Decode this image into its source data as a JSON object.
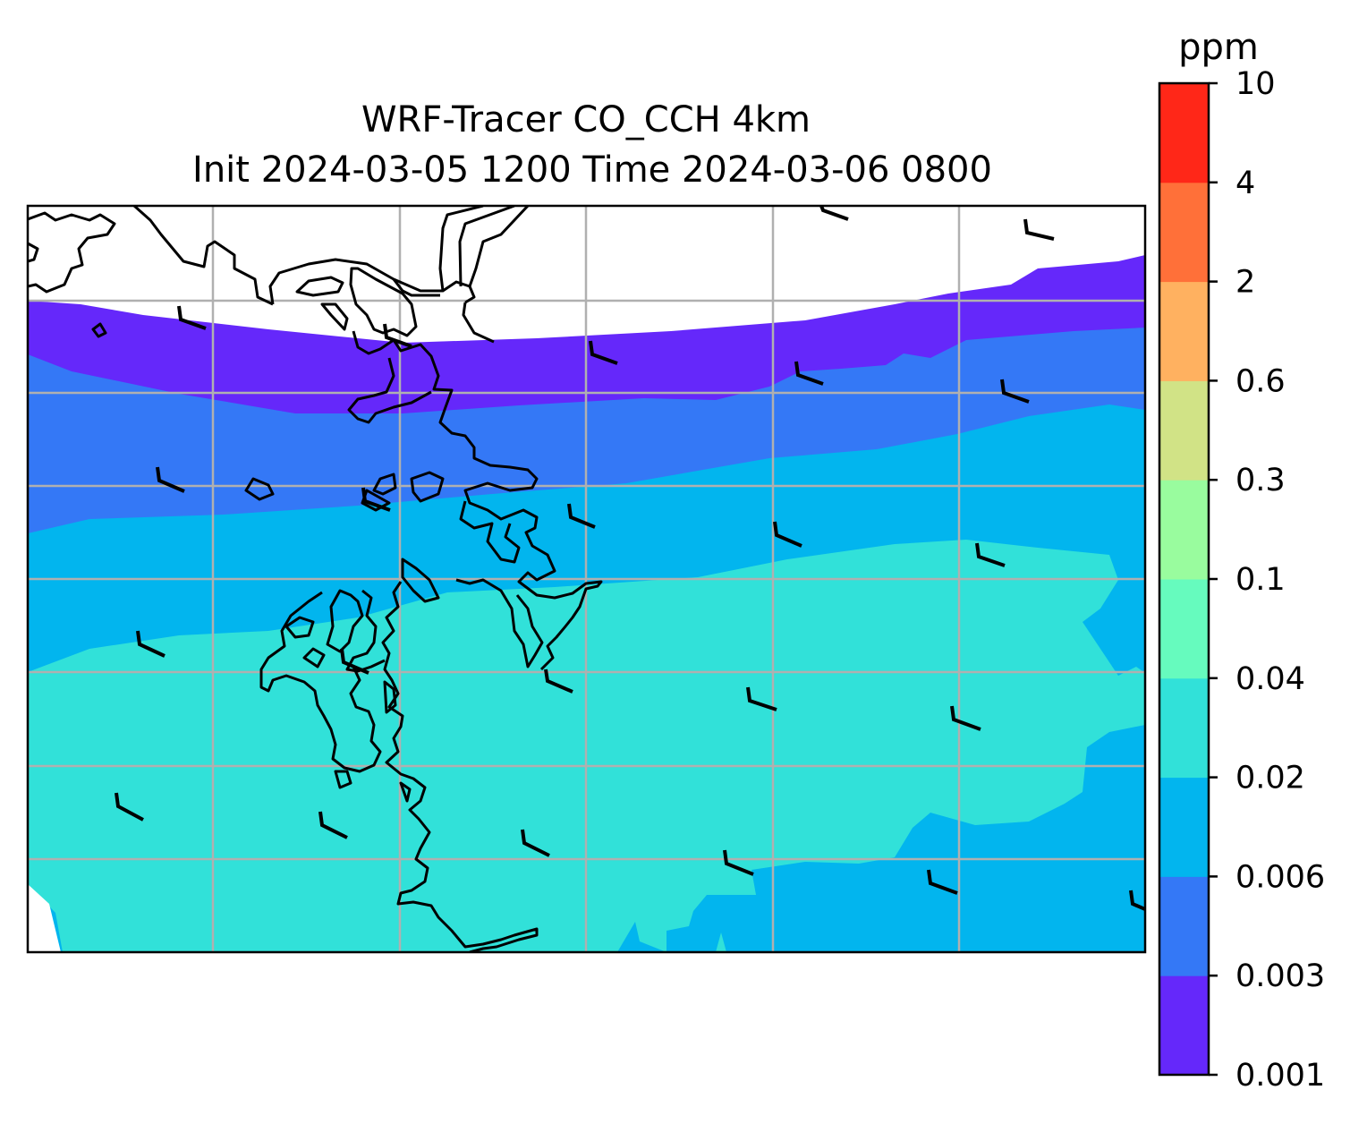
{
  "title": {
    "line1": "WRF-Tracer CO_CCH 4km",
    "line2": "Init 2024-03-05 1200 Time 2024-03-06 0800"
  },
  "colorbar": {
    "unit": "ppm",
    "levels": [
      "0.001",
      "0.003",
      "0.006",
      "0.02",
      "0.04",
      "0.1",
      "0.3",
      "0.6",
      "2",
      "4",
      "10"
    ],
    "colors": [
      "#6528fa",
      "#3478f6",
      "#02b5ee",
      "#31e1d9",
      "#66fbbe",
      "#99fc9e",
      "#d1e386",
      "#ffb160",
      "#ff7039",
      "#ff2718"
    ]
  },
  "map": {
    "gridlines": true,
    "coastlines": true,
    "wind_barbs": true
  }
}
